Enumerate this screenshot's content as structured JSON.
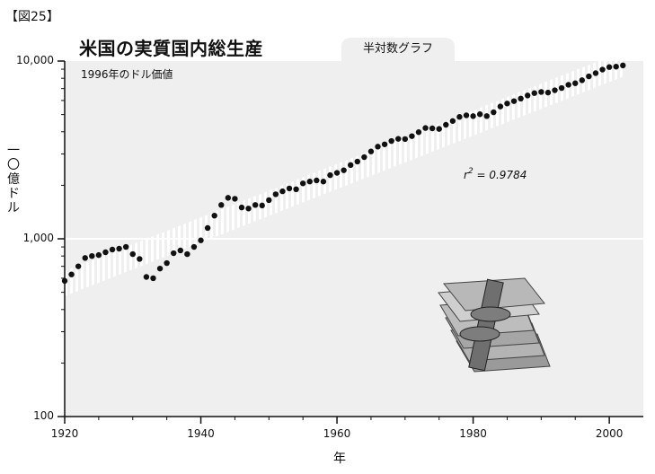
{
  "figure_label": "【図25】",
  "tab_label": "半対数グラフ",
  "chart_data": {
    "type": "scatter",
    "title": "米国の実質国内総生産",
    "subtitle": "1996年のドル価値",
    "xlabel": "年",
    "ylabel": "一〇億ドル",
    "yscale": "log",
    "ylim": [
      100,
      10000
    ],
    "xlim": [
      1920,
      2005
    ],
    "x_ticks": [
      1920,
      1940,
      1960,
      1980,
      2000
    ],
    "y_ticks": [
      100,
      1000,
      10000
    ],
    "y_tick_labels": [
      "100",
      "1,000",
      "10,000"
    ],
    "annotation": "r² = 0.9784",
    "annotation_parts": {
      "base": "r",
      "exp": "2",
      "rest": " = 0.9784"
    },
    "trend": {
      "x": [
        1920,
        2002
      ],
      "y": [
        560,
        9600
      ]
    },
    "x": [
      1920,
      1921,
      1922,
      1923,
      1924,
      1925,
      1926,
      1927,
      1928,
      1929,
      1930,
      1931,
      1932,
      1933,
      1934,
      1935,
      1936,
      1937,
      1938,
      1939,
      1940,
      1941,
      1942,
      1943,
      1944,
      1945,
      1946,
      1947,
      1948,
      1949,
      1950,
      1951,
      1952,
      1953,
      1954,
      1955,
      1956,
      1957,
      1958,
      1959,
      1960,
      1961,
      1962,
      1963,
      1964,
      1965,
      1966,
      1967,
      1968,
      1969,
      1970,
      1971,
      1972,
      1973,
      1974,
      1975,
      1976,
      1977,
      1978,
      1979,
      1980,
      1981,
      1982,
      1983,
      1984,
      1985,
      1986,
      1987,
      1988,
      1989,
      1990,
      1991,
      1992,
      1993,
      1994,
      1995,
      1996,
      1997,
      1998,
      1999,
      2000,
      2001,
      2002
    ],
    "y": [
      580,
      630,
      700,
      780,
      800,
      810,
      840,
      870,
      880,
      900,
      820,
      770,
      610,
      600,
      680,
      730,
      830,
      860,
      820,
      900,
      980,
      1150,
      1350,
      1550,
      1700,
      1680,
      1500,
      1480,
      1550,
      1540,
      1650,
      1780,
      1850,
      1920,
      1900,
      2050,
      2100,
      2130,
      2100,
      2280,
      2350,
      2430,
      2600,
      2720,
      2880,
      3100,
      3300,
      3400,
      3550,
      3650,
      3640,
      3780,
      3980,
      4200,
      4180,
      4150,
      4380,
      4600,
      4850,
      4950,
      4900,
      5020,
      4900,
      5150,
      5550,
      5770,
      5950,
      6150,
      6400,
      6600,
      6700,
      6650,
      6850,
      7050,
      7350,
      7500,
      7800,
      8200,
      8550,
      8950,
      9250,
      9300,
      9450
    ]
  }
}
